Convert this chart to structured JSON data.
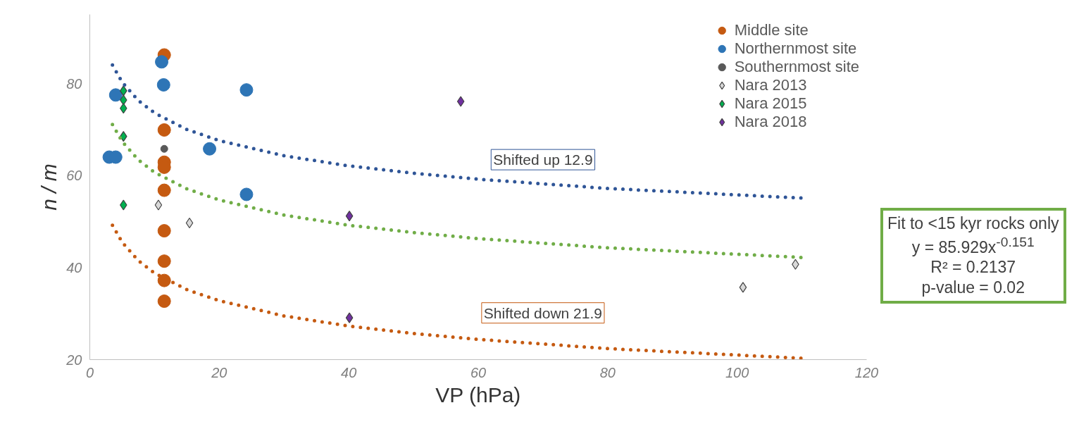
{
  "chart_data": {
    "type": "scatter",
    "xlabel": "VP (hPa)",
    "ylabel": "n / m",
    "xlim": [
      0,
      120
    ],
    "ylim": [
      20,
      95
    ],
    "xticks": [
      0,
      20,
      40,
      60,
      80,
      100,
      120
    ],
    "yticks": [
      20,
      40,
      60,
      80
    ],
    "grid": false,
    "legend": "top right",
    "series": [
      {
        "name": "Middle site",
        "color": "#c55a11",
        "marker": "circle",
        "x": [
          11.5,
          11.5,
          11.5,
          11.5,
          11.5,
          11.5,
          11.5,
          11.5,
          11.5
        ],
        "values": [
          86.2,
          69.9,
          62.9,
          61.8,
          56.8,
          48.0,
          41.4,
          37.2,
          32.7
        ]
      },
      {
        "name": "Northernmost site",
        "color": "#2e75b6",
        "marker": "circle",
        "x": [
          11.1,
          11.4,
          4.0,
          24.2,
          18.5,
          3.0,
          4.0,
          24.2
        ],
        "values": [
          84.7,
          79.7,
          77.5,
          78.6,
          65.8,
          64.0,
          64.0,
          55.9
        ]
      },
      {
        "name": "Southernmost site",
        "color": "#595959",
        "marker": "circle",
        "x": [
          11.5
        ],
        "values": [
          65.8
        ]
      },
      {
        "name": "Nara 2013",
        "color": "#d9d9d9",
        "marker": "diamond",
        "x": [
          10.6,
          15.4,
          100.9,
          109.0
        ],
        "values": [
          53.6,
          49.7,
          35.7,
          40.7
        ]
      },
      {
        "name": "Nara 2015",
        "color": "#00b050",
        "marker": "diamond",
        "x": [
          5.2,
          5.2,
          5.2,
          5.2,
          5.2
        ],
        "values": [
          78.4,
          76.4,
          74.6,
          68.5,
          53.6
        ]
      },
      {
        "name": "Nara 2018",
        "color": "#7030a0",
        "marker": "diamond",
        "x": [
          57.3,
          40.1,
          40.1
        ],
        "values": [
          76.1,
          51.2,
          29.1
        ]
      },
      {
        "type": "line",
        "color": "#70ad47",
        "line_style": "dotted",
        "x": [
          3.5,
          5,
          7.5,
          10,
          15,
          20,
          30,
          40,
          50,
          60,
          70,
          80,
          90,
          100,
          110
        ],
        "values": [
          71.1,
          67.4,
          63.4,
          60.7,
          57.1,
          54.7,
          51.4,
          49.2,
          47.6,
          46.3,
          45.3,
          44.3,
          43.6,
          42.9,
          42.2
        ]
      },
      {
        "type": "line",
        "color": "#2f5597",
        "line_style": "dotted",
        "x": [
          3.5,
          5,
          7.5,
          10,
          15,
          20,
          30,
          40,
          50,
          60,
          70,
          80,
          90,
          100,
          110
        ],
        "values": [
          84.0,
          80.3,
          76.3,
          73.6,
          70.0,
          67.6,
          64.3,
          62.1,
          60.5,
          59.2,
          58.2,
          57.2,
          56.5,
          55.8,
          55.1
        ]
      },
      {
        "type": "line",
        "color": "#c55a11",
        "line_style": "dotted",
        "x": [
          3.5,
          5,
          7.5,
          10,
          15,
          20,
          30,
          40,
          50,
          60,
          70,
          80,
          90,
          100,
          110
        ],
        "values": [
          49.2,
          45.5,
          41.5,
          38.8,
          35.2,
          32.8,
          29.5,
          27.3,
          25.7,
          24.4,
          23.4,
          22.4,
          21.7,
          21.0,
          20.3
        ]
      }
    ],
    "annotations": [
      "Shifted up 12.9",
      "Shifted down 21.9",
      "Fit to <15 kyr rocks only",
      "y = 85.929x$^{-0.151}$",
      "R² = 0.2137",
      "p-value = 0.02"
    ]
  }
}
